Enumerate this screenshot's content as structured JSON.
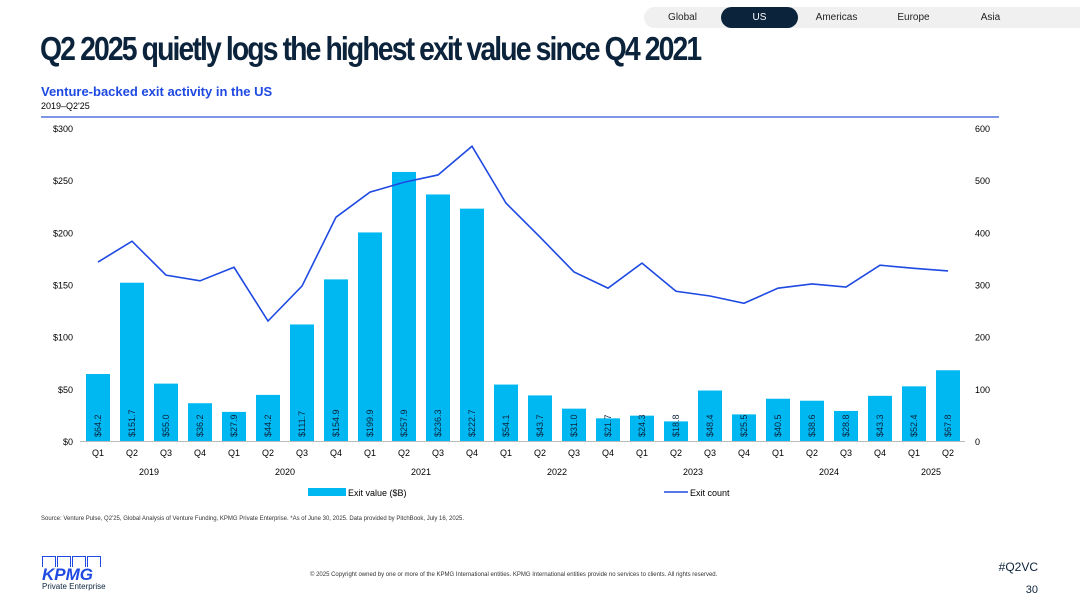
{
  "tabs": [
    {
      "label": "Global"
    },
    {
      "label": "US",
      "active": true
    },
    {
      "label": "Americas"
    },
    {
      "label": "Europe"
    },
    {
      "label": "Asia"
    }
  ],
  "title": "Q2 2025 quietly logs the highest exit value since Q4 2021",
  "subtitle": "Venture-backed exit activity in the US",
  "period": "2019–Q2'25",
  "source": "Source: Venture Pulse, Q2'25, Global Analysis of Venture Funding, KPMG Private Enterprise. *As of June 30, 2025. Data provided by PitchBook, July 16, 2025.",
  "copyright": "© 2025 Copyright owned by one or more of the KPMG International entities. KPMG International entities provide no services to clients. All rights reserved.",
  "hashtag": "#Q2VC",
  "page_number": "30",
  "logo": {
    "word": "KPMG",
    "tagline": "Private Enterprise"
  },
  "colors": {
    "bar": "#00b8f1",
    "line": "#1e49e2",
    "navy": "#0c233c"
  },
  "chart_data": {
    "type": "bar",
    "categories": [
      "Q1",
      "Q2",
      "Q3",
      "Q4",
      "Q1",
      "Q2",
      "Q3",
      "Q4",
      "Q1",
      "Q2",
      "Q3",
      "Q4",
      "Q1",
      "Q2",
      "Q3",
      "Q4",
      "Q1",
      "Q2",
      "Q3",
      "Q4",
      "Q1",
      "Q2",
      "Q3",
      "Q4",
      "Q1",
      "Q2"
    ],
    "years": [
      {
        "label": "2019",
        "span": 4
      },
      {
        "label": "2020",
        "span": 4
      },
      {
        "label": "2021",
        "span": 4
      },
      {
        "label": "2022",
        "span": 4
      },
      {
        "label": "2023",
        "span": 4
      },
      {
        "label": "2024",
        "span": 4
      },
      {
        "label": "2025",
        "span": 2
      }
    ],
    "series": [
      {
        "name": "Exit value ($B)",
        "type": "bar",
        "axis": "left",
        "values": [
          64.2,
          151.7,
          55.0,
          36.2,
          27.9,
          44.2,
          111.7,
          154.9,
          199.9,
          257.9,
          236.3,
          222.7,
          54.1,
          43.7,
          31.0,
          21.7,
          24.3,
          18.8,
          48.4,
          25.5,
          40.5,
          38.6,
          28.8,
          43.3,
          52.4,
          67.8
        ]
      },
      {
        "name": "Exit count",
        "type": "line",
        "axis": "right",
        "values": [
          343,
          383,
          318,
          307,
          333,
          230,
          297,
          429,
          477,
          496,
          510,
          565,
          456,
          391,
          324,
          293,
          341,
          287,
          278,
          264,
          293,
          301,
          295,
          337,
          331,
          326
        ]
      }
    ],
    "ylim": [
      0,
      300
    ],
    "yticks": [
      "$0",
      "$50",
      "$100",
      "$150",
      "$200",
      "$250",
      "$300"
    ],
    "y2lim": [
      0,
      600
    ],
    "y2ticks": [
      "0",
      "100",
      "200",
      "300",
      "400",
      "500",
      "600"
    ],
    "legend": "bottom",
    "grid": false
  }
}
